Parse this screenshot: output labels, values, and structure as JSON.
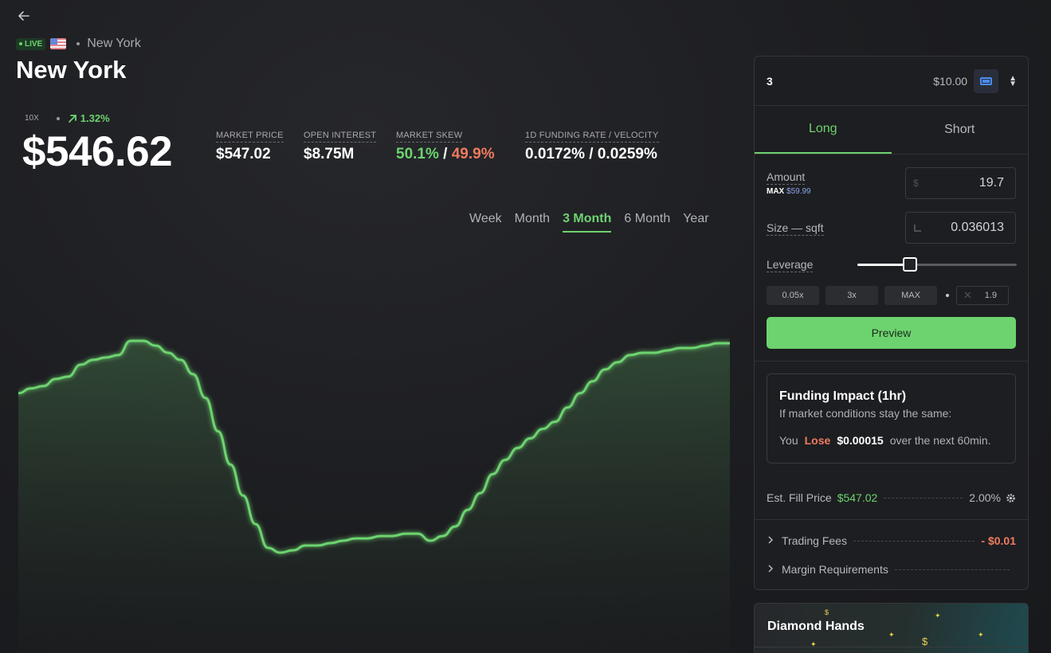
{
  "header": {
    "live_label": "LIVE",
    "location_small": "New York",
    "title": "New York"
  },
  "stats": {
    "leverage": "10X",
    "change": "1.32%",
    "price": "$546.62",
    "metrics": [
      {
        "label": "MARKET PRICE",
        "value": "$547.02"
      },
      {
        "label": "OPEN INTEREST",
        "value": "$8.75M"
      },
      {
        "label": "MARKET SKEW",
        "value_long": "50.1%",
        "value_sep": " / ",
        "value_short": "49.9%"
      },
      {
        "label": "1D FUNDING RATE / VELOCITY",
        "value": "0.0172% / 0.0259%"
      }
    ]
  },
  "ranges": [
    "Week",
    "Month",
    "3 Month",
    "6 Month",
    "Year"
  ],
  "active_range": "3 Month",
  "chart_data": {
    "type": "area",
    "series": [
      {
        "color": "#6dd36f",
        "values": [
          70,
          72,
          73,
          76,
          77,
          82,
          84,
          85,
          86,
          92,
          92,
          90,
          87,
          84,
          78,
          68,
          54,
          40,
          27,
          15,
          5,
          3,
          4,
          6,
          6,
          7,
          8,
          9,
          9,
          10,
          10,
          11,
          11,
          8,
          10,
          14,
          21,
          28,
          36,
          42,
          47,
          51,
          55,
          58,
          64,
          70,
          75,
          80,
          83,
          86,
          87,
          87,
          88,
          89,
          89,
          90,
          91,
          91
        ]
      }
    ]
  },
  "order_panel": {
    "account": "3",
    "balance": "$10.00",
    "tabs": [
      "Long",
      "Short"
    ],
    "active_tab": "Long",
    "amount_label": "Amount",
    "max_label": "MAX",
    "max_value": "$59.99",
    "amount_prefix": "$",
    "amount_value": "19.7",
    "size_label": "Size — sqft",
    "size_value": "0.036013",
    "leverage_label": "Leverage",
    "leverage_fraction": 0.33,
    "leverage_buttons": [
      "0.05x",
      "3x",
      "MAX"
    ],
    "leverage_custom": "1.9",
    "preview_label": "Preview",
    "impact_title": "Funding Impact (1hr)",
    "impact_sub": "If market conditions stay the same:",
    "impact_you": "You",
    "impact_lose": "Lose",
    "impact_amount": "$0.00015",
    "impact_tail": "over the next 60min.",
    "fill_label": "Est. Fill Price",
    "fill_price": "$547.02",
    "slippage": "2.00%",
    "fees_label": "Trading Fees",
    "fees_value": "- $0.01",
    "margin_label": "Margin Requirements"
  },
  "diamond_card": {
    "title": "Diamond Hands"
  }
}
